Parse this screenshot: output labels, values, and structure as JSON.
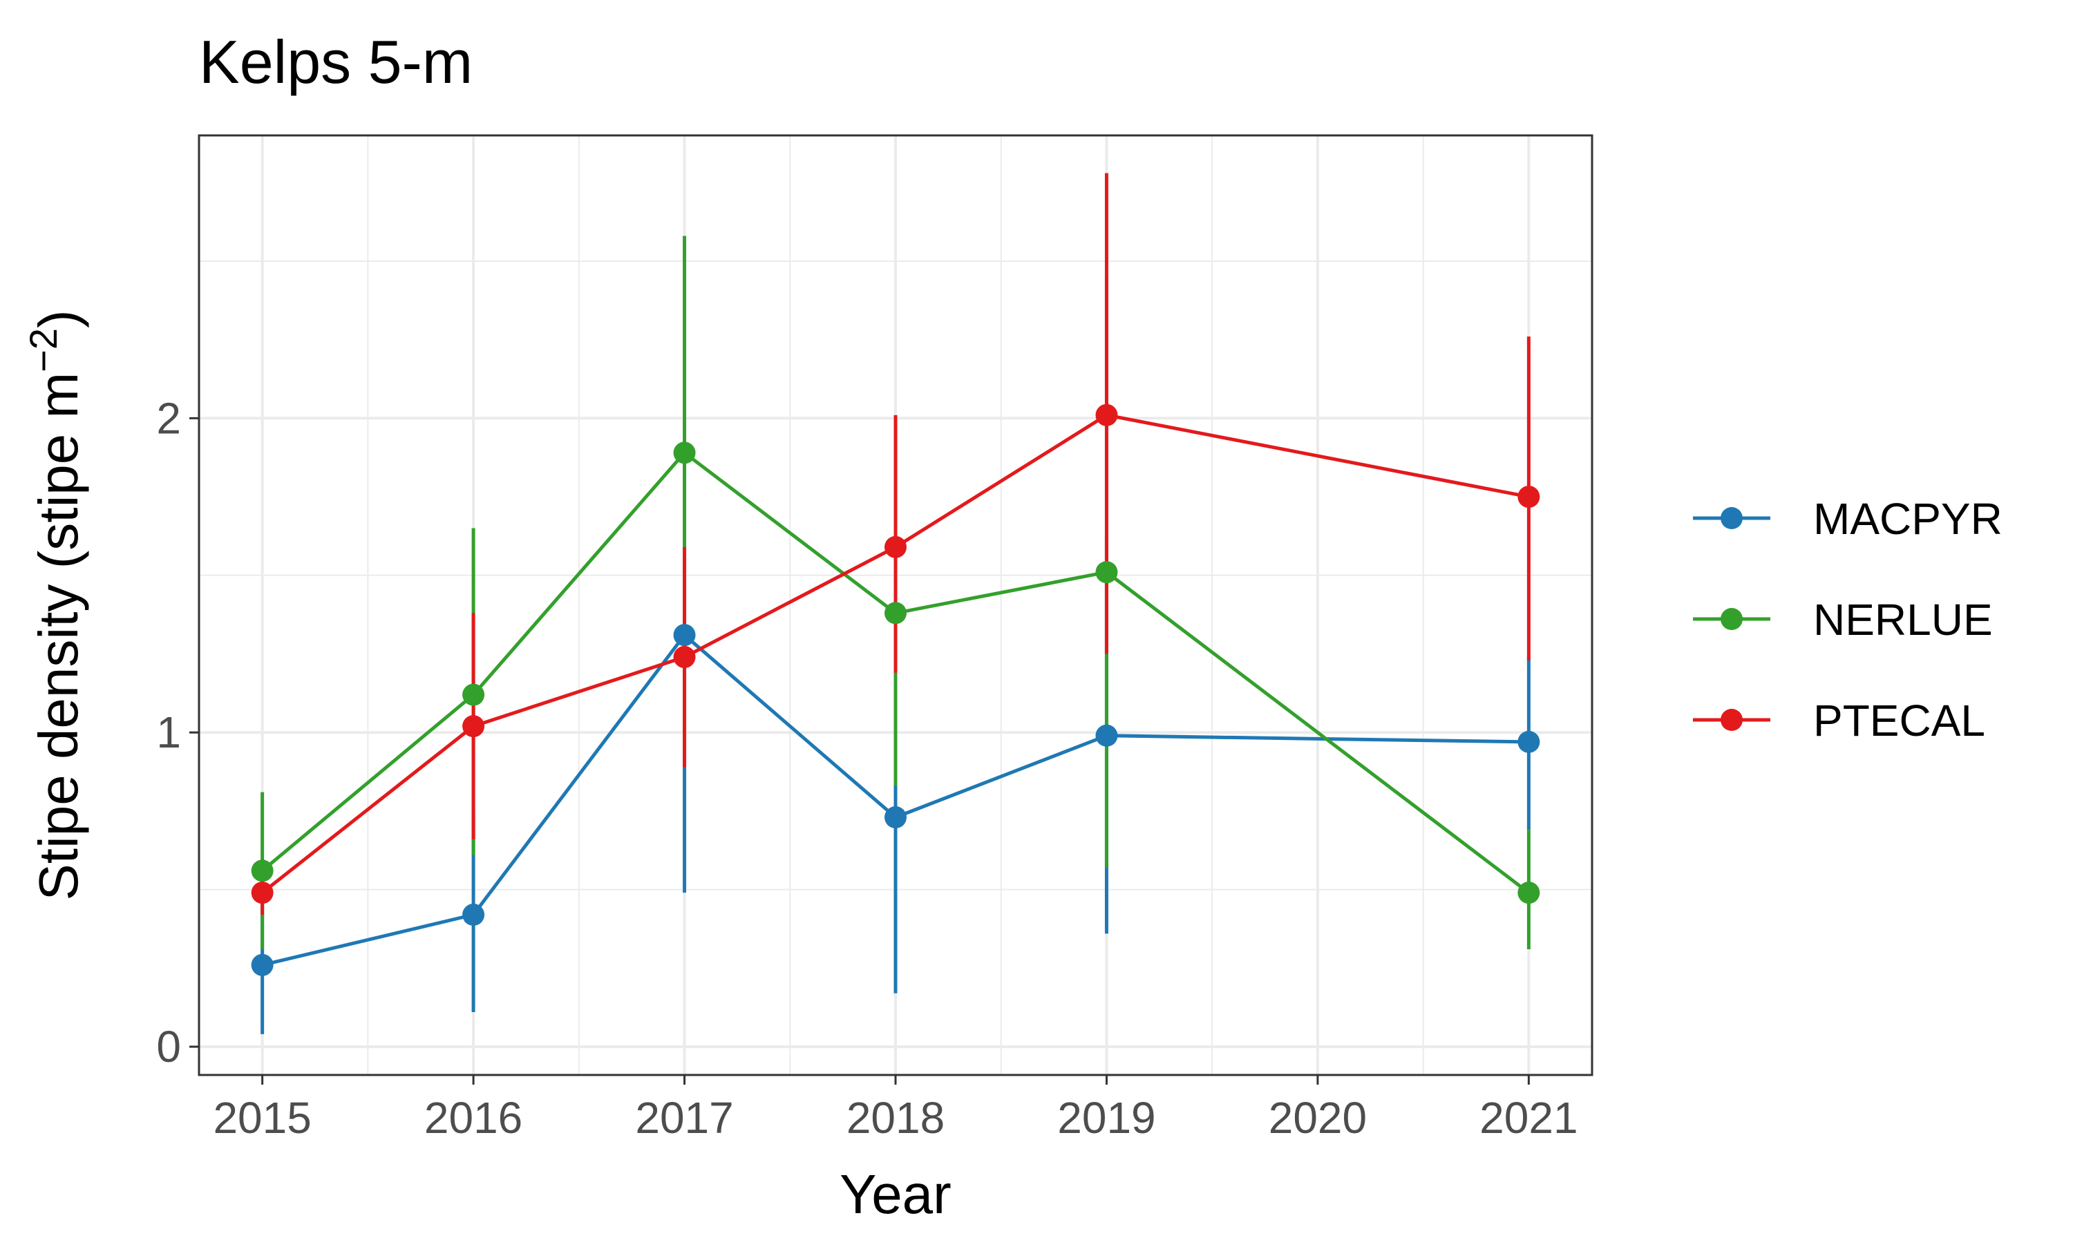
{
  "chart_data": {
    "type": "line",
    "title": "Kelps 5-m",
    "xlabel": "Year",
    "ylabel": "Stipe density (stipe m",
    "ylabel_superscript": "−2",
    "ylabel_close": ")",
    "x": [
      2015,
      2016,
      2017,
      2018,
      2019,
      2020,
      2021
    ],
    "x_tick_labels": [
      "2015",
      "2016",
      "2017",
      "2018",
      "2019",
      "2020",
      "2021"
    ],
    "y_ticks": [
      0,
      1,
      2
    ],
    "y_tick_labels": [
      "0",
      "1",
      "2"
    ],
    "xlim": [
      2014.7,
      2021.3
    ],
    "ylim": [
      -0.09,
      2.9
    ],
    "grid": true,
    "legend_position": "right",
    "series": [
      {
        "name": "MACPYR",
        "color": "#1f78b4",
        "points": [
          {
            "x": 2015,
            "y": 0.26,
            "lo": 0.04,
            "hi": 0.52
          },
          {
            "x": 2016,
            "y": 0.42,
            "lo": 0.11,
            "hi": 0.74
          },
          {
            "x": 2017,
            "y": 1.31,
            "lo": 0.49,
            "hi": 1.31
          },
          {
            "x": 2018,
            "y": 0.73,
            "lo": 0.17,
            "hi": 1.29
          },
          {
            "x": 2019,
            "y": 0.99,
            "lo": 0.36,
            "hi": 1.62
          },
          {
            "x": 2021,
            "y": 0.97,
            "lo": 0.69,
            "hi": 1.24
          }
        ]
      },
      {
        "name": "NERLUE",
        "color": "#33a02c",
        "points": [
          {
            "x": 2015,
            "y": 0.56,
            "lo": 0.31,
            "hi": 0.81
          },
          {
            "x": 2016,
            "y": 1.12,
            "lo": 0.61,
            "hi": 1.65
          },
          {
            "x": 2017,
            "y": 1.89,
            "lo": 1.19,
            "hi": 2.58
          },
          {
            "x": 2018,
            "y": 1.38,
            "lo": 0.83,
            "hi": 1.92
          },
          {
            "x": 2019,
            "y": 1.51,
            "lo": 0.57,
            "hi": 2.45
          },
          {
            "x": 2021,
            "y": 0.49,
            "lo": 0.31,
            "hi": 0.69
          }
        ]
      },
      {
        "name": "PTECAL",
        "color": "#e31a1c",
        "points": [
          {
            "x": 2015,
            "y": 0.49,
            "lo": 0.42,
            "hi": 0.56
          },
          {
            "x": 2016,
            "y": 1.02,
            "lo": 0.66,
            "hi": 1.38
          },
          {
            "x": 2017,
            "y": 1.24,
            "lo": 0.89,
            "hi": 1.59
          },
          {
            "x": 2018,
            "y": 1.59,
            "lo": 1.19,
            "hi": 2.01
          },
          {
            "x": 2019,
            "y": 2.01,
            "lo": 1.25,
            "hi": 2.78
          },
          {
            "x": 2021,
            "y": 1.75,
            "lo": 1.23,
            "hi": 2.26
          }
        ]
      }
    ]
  }
}
